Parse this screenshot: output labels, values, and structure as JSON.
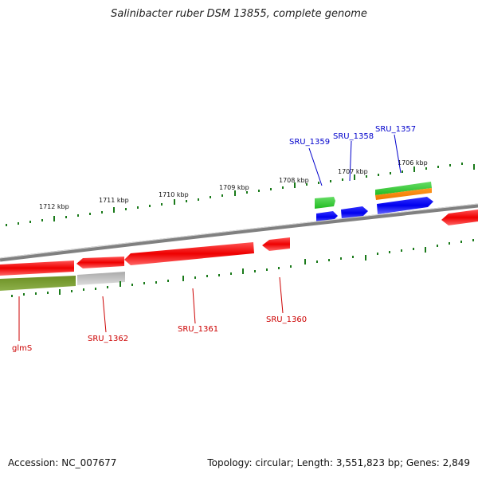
{
  "title": "Salinibacter ruber DSM 13855, complete genome",
  "footer": {
    "accession": "Accession: NC_007677",
    "stats": "Topology: circular; Length: 3,551,823 bp; Genes: 2,849"
  },
  "scale": {
    "ticks": [
      "1712 kbp",
      "1711 kbp",
      "1710 kbp",
      "1709 kbp",
      "1708 kbp",
      "1707 kbp",
      "1706 kbp"
    ]
  },
  "genes": [
    {
      "id": "glmS",
      "label": "glmS",
      "color": "#cc0000",
      "strand": "minus"
    },
    {
      "id": "SRU_1362",
      "label": "SRU_1362",
      "color": "#cc0000",
      "strand": "minus"
    },
    {
      "id": "SRU_1361",
      "label": "SRU_1361",
      "color": "#cc0000",
      "strand": "minus"
    },
    {
      "id": "SRU_1360",
      "label": "SRU_1360",
      "color": "#cc0000",
      "strand": "minus"
    },
    {
      "id": "SRU_1359",
      "label": "SRU_1359",
      "color": "#0000cc",
      "strand": "plus"
    },
    {
      "id": "SRU_1358",
      "label": "SRU_1358",
      "color": "#0000cc",
      "strand": "plus"
    },
    {
      "id": "SRU_1357",
      "label": "SRU_1357",
      "color": "#0000cc",
      "strand": "plus"
    }
  ],
  "colors": {
    "cds_minus": "#ee0000",
    "cds_plus": "#0000ee",
    "gene_green": "#33cc33",
    "gene_orange": "#ff8800",
    "olive_feature": "#6b8e23",
    "gray_feature": "#b0b0b0",
    "backbone": "#808080",
    "tick": "#1a7a1a"
  }
}
